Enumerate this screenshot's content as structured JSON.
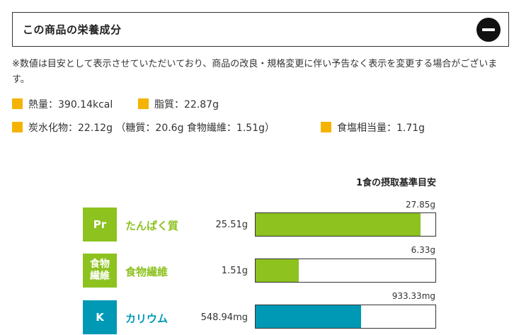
{
  "header": {
    "title": "この商品の栄養成分",
    "toggle_icon": "minus-circle-icon"
  },
  "note": "※数値は目安として表示させていただいており、商品の改良・規格変更に伴い予告なく表示を変更する場合がございます。",
  "summary": {
    "calories": "熱量：390.14kcal",
    "fat": "脂質：22.87g",
    "carbs": "炭水化物：22.12g （糖質：20.6g 食物繊維：1.51g）",
    "salt": "食塩相当量：1.71g",
    "marker_color": "#f5b301"
  },
  "reference": {
    "title": "1食の摂取基準目安"
  },
  "nutrients": [
    {
      "badge": "Pr",
      "label": "たんぱく質",
      "value": "25.51g",
      "reference": "27.85g",
      "fill_fraction": 0.916,
      "color": "#8dc21f"
    },
    {
      "badge": "食物繊維",
      "label": "食物繊維",
      "value": "1.51g",
      "reference": "6.33g",
      "fill_fraction": 0.239,
      "color": "#8dc21f"
    },
    {
      "badge": "K",
      "label": "カリウム",
      "value": "548.94mg",
      "reference": "933.33mg",
      "fill_fraction": 0.588,
      "color": "#0099b5"
    }
  ]
}
